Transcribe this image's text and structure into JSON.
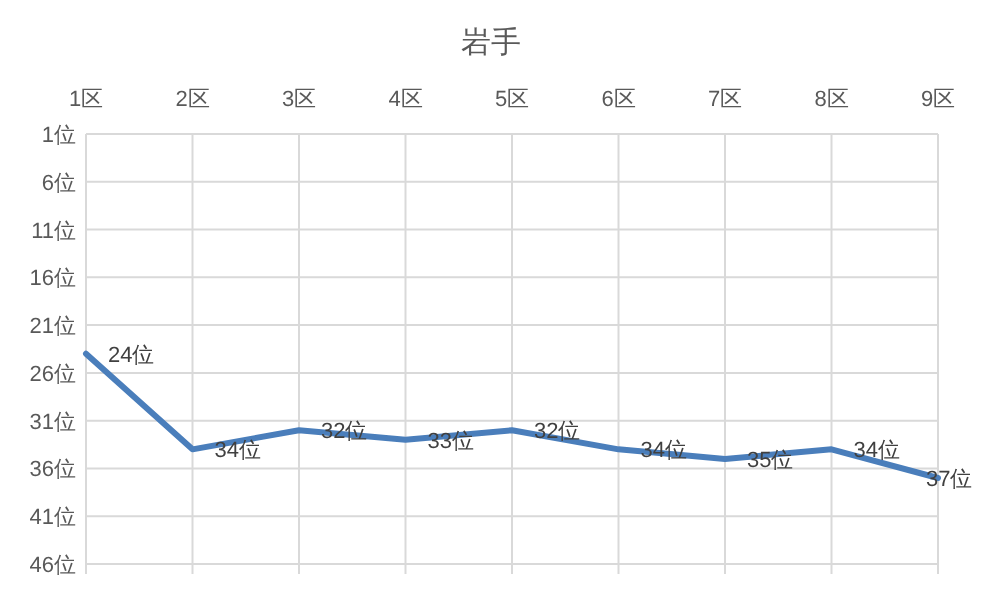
{
  "chart_data": {
    "type": "line",
    "title": "岩手",
    "categories": [
      "1区",
      "2区",
      "3区",
      "4区",
      "5区",
      "6区",
      "7区",
      "8区",
      "9区"
    ],
    "series": [
      {
        "color": "#4a7ebb",
        "values": [
          24,
          34,
          32,
          33,
          32,
          34,
          35,
          34,
          37
        ],
        "value_labels": [
          "24位",
          "34位",
          "32位",
          "33位",
          "32位",
          "34位",
          "35位",
          "34位",
          "37位"
        ]
      }
    ],
    "ylim": [
      46,
      1
    ],
    "yticks": [
      {
        "value": 1,
        "label": "1位"
      },
      {
        "value": 6,
        "label": "6位"
      },
      {
        "value": 11,
        "label": "11位"
      },
      {
        "value": 16,
        "label": "16位"
      },
      {
        "value": 21,
        "label": "21位"
      },
      {
        "value": 26,
        "label": "26位"
      },
      {
        "value": 31,
        "label": "31位"
      },
      {
        "value": 36,
        "label": "36位"
      },
      {
        "value": 41,
        "label": "41位"
      },
      {
        "value": 46,
        "label": "46位"
      }
    ],
    "grid": true,
    "marker": "none",
    "line_style": "solid"
  }
}
